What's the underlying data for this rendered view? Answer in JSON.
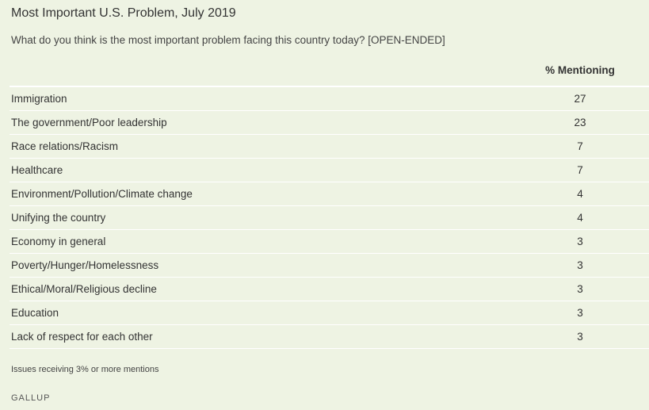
{
  "title": "Most Important U.S. Problem, July 2019",
  "subtitle": "What do you think is the most important problem facing this country today? [OPEN-ENDED]",
  "table": {
    "column_header": "% Mentioning"
  },
  "footnote": "Issues receiving 3% or more mentions",
  "source": "GALLUP",
  "colors": {
    "background": "#eef3e3",
    "divider": "#ffffff",
    "text": "#333333"
  },
  "chart_data": {
    "type": "table",
    "title": "Most Important U.S. Problem, July 2019",
    "subtitle": "What do you think is the most important problem facing this country today? [OPEN-ENDED]",
    "columns": [
      "",
      "% Mentioning"
    ],
    "rows": [
      {
        "label": "Immigration",
        "value": "27"
      },
      {
        "label": "The government/Poor leadership",
        "value": "23"
      },
      {
        "label": "Race relations/Racism",
        "value": "7"
      },
      {
        "label": "Healthcare",
        "value": "7"
      },
      {
        "label": "Environment/Pollution/Climate change",
        "value": "4"
      },
      {
        "label": "Unifying the country",
        "value": "4"
      },
      {
        "label": "Economy in general",
        "value": "3"
      },
      {
        "label": "Poverty/Hunger/Homelessness",
        "value": "3"
      },
      {
        "label": "Ethical/Moral/Religious decline",
        "value": "3"
      },
      {
        "label": "Education",
        "value": "3"
      },
      {
        "label": "Lack of respect for each other",
        "value": "3"
      }
    ]
  }
}
